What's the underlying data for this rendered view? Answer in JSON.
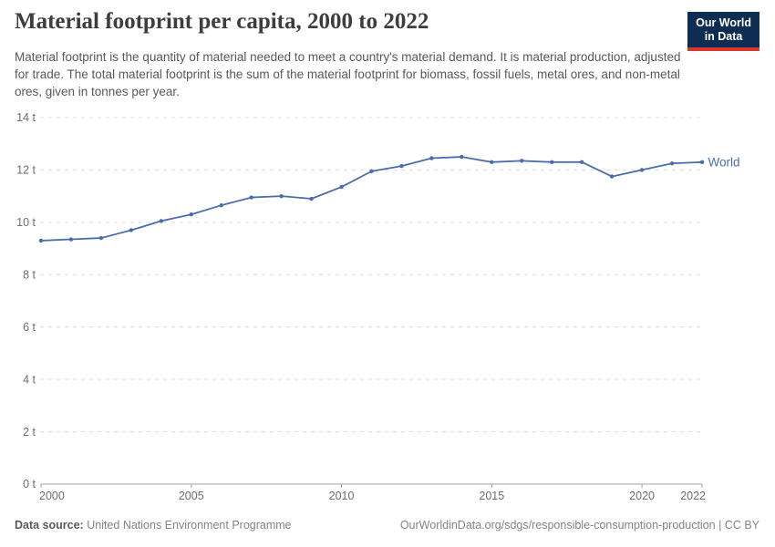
{
  "header": {
    "title": "Material footprint per capita, 2000 to 2022",
    "subtitle": "Material footprint is the quantity of material needed to meet a country's material demand. It is material production, adjusted for trade. The total material footprint is the sum of the material footprint for biomass, fossil fuels, metal ores, and non-metal ores, given in tonnes per year.",
    "logo": {
      "line1": "Our World",
      "line2": "in Data",
      "bg_color": "#0d2d52",
      "accent_color": "#d73a2b"
    }
  },
  "chart_data": {
    "type": "line",
    "title": "Material footprint per capita, 2000 to 2022",
    "ylabel": "",
    "xlabel": "",
    "unit_suffix": " t",
    "ylim": [
      0,
      14
    ],
    "ytick_step": 2,
    "xticks": [
      2000,
      2005,
      2010,
      2015,
      2020,
      2022
    ],
    "grid": "horizontal-dashed",
    "legend_position": "end-of-line",
    "x": [
      2000,
      2001,
      2002,
      2003,
      2004,
      2005,
      2006,
      2007,
      2008,
      2009,
      2010,
      2011,
      2012,
      2013,
      2014,
      2015,
      2016,
      2017,
      2018,
      2019,
      2020,
      2021,
      2022
    ],
    "series": [
      {
        "name": "World",
        "color": "#4a6da9",
        "values": [
          9.3,
          9.35,
          9.4,
          9.7,
          10.05,
          10.3,
          10.65,
          10.95,
          11.0,
          10.9,
          11.35,
          11.95,
          12.15,
          12.45,
          12.5,
          12.3,
          12.35,
          12.3,
          12.3,
          11.75,
          12.0,
          12.25,
          12.3
        ]
      }
    ],
    "colors": {
      "gridline": "#dcdcdc",
      "axis_line": "#a3a3a3",
      "tick_label": "#6e6e6e"
    }
  },
  "footer": {
    "datasource_label": "Data source:",
    "datasource_value": " United Nations Environment Programme",
    "credit": "OurWorldinData.org/sdgs/responsible-consumption-production | CC BY"
  }
}
